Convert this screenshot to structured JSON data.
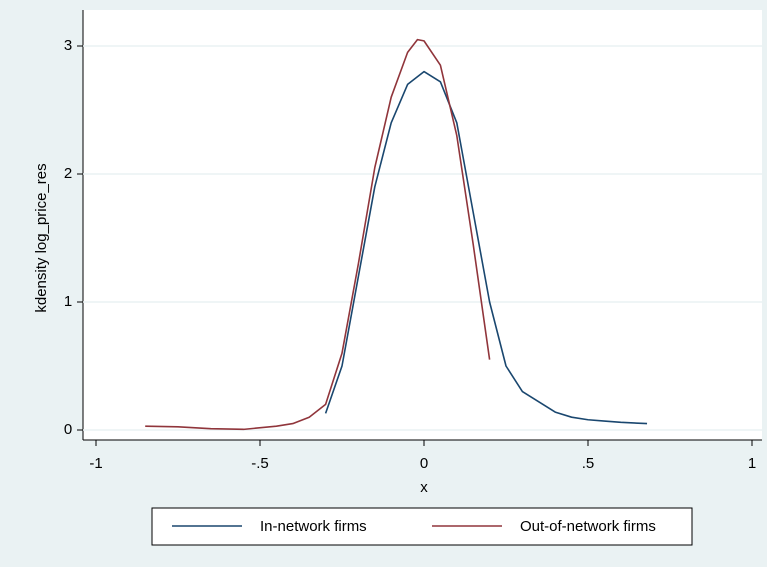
{
  "chart_data": {
    "type": "line",
    "x_label": "x",
    "y_label": "kdensity log_price_res",
    "xlim": [
      -1,
      1
    ],
    "xticks": [
      -1,
      {
        "value": -0.5,
        "label": "-.5"
      },
      0,
      {
        "value": 0.5,
        "label": ".5"
      },
      1
    ],
    "ylim": [
      0,
      3
    ],
    "yticks": [
      0,
      1,
      2,
      3
    ],
    "grid": true,
    "legend": "bottom",
    "series": [
      {
        "name": "In-network firms",
        "color": "#1a476f",
        "x": [
          -0.3,
          -0.25,
          -0.2,
          -0.15,
          -0.1,
          -0.05,
          0,
          0.05,
          0.1,
          0.15,
          0.2,
          0.25,
          0.3,
          0.35,
          0.4,
          0.45,
          0.5,
          0.55,
          0.6,
          0.68
        ],
        "values": [
          0.13,
          0.5,
          1.2,
          1.9,
          2.4,
          2.7,
          2.8,
          2.72,
          2.4,
          1.7,
          1.0,
          0.5,
          0.3,
          0.22,
          0.14,
          0.1,
          0.08,
          0.07,
          0.06,
          0.05
        ]
      },
      {
        "name": "Out-of-network firms",
        "color": "#90353b",
        "x": [
          -0.85,
          -0.75,
          -0.65,
          -0.55,
          -0.45,
          -0.4,
          -0.35,
          -0.3,
          -0.25,
          -0.2,
          -0.15,
          -0.1,
          -0.05,
          -0.02,
          0,
          0.05,
          0.1,
          0.15,
          0.2
        ],
        "values": [
          0.03,
          0.025,
          0.01,
          0.005,
          0.03,
          0.05,
          0.1,
          0.2,
          0.6,
          1.3,
          2.05,
          2.6,
          2.95,
          3.05,
          3.04,
          2.85,
          2.3,
          1.45,
          0.55
        ]
      }
    ]
  }
}
